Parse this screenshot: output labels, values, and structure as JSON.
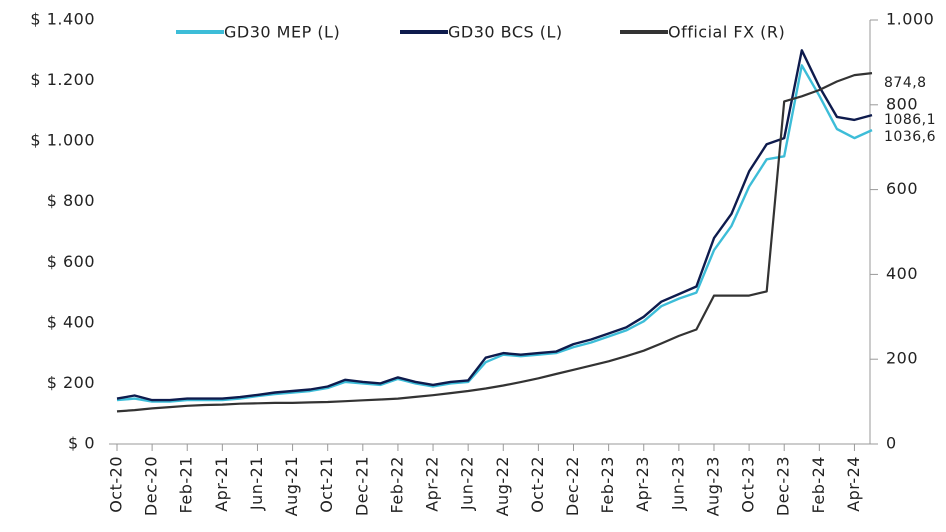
{
  "chart_data": {
    "type": "line",
    "categories": [
      "Oct-20",
      null,
      "Dec-20",
      null,
      "Feb-21",
      null,
      "Apr-21",
      null,
      "Jun-21",
      null,
      "Aug-21",
      null,
      "Oct-21",
      null,
      "Dec-21",
      null,
      "Feb-22",
      null,
      "Apr-22",
      null,
      "Jun-22",
      null,
      "Aug-22",
      null,
      "Oct-22",
      null,
      "Dec-22",
      null,
      "Feb-23",
      null,
      "Apr-23",
      null,
      "Jun-23",
      null,
      "Aug-23",
      null,
      "Oct-23",
      null,
      "Dec-23",
      null,
      "Feb-24",
      null,
      "Apr-24",
      null
    ],
    "series": [
      {
        "name": "GD30 MEP (L)",
        "color": "#3dbdd8",
        "values": [
          145,
          150,
          140,
          140,
          145,
          145,
          145,
          150,
          158,
          165,
          170,
          175,
          185,
          205,
          200,
          195,
          215,
          200,
          190,
          200,
          205,
          270,
          295,
          290,
          295,
          300,
          320,
          335,
          355,
          375,
          405,
          455,
          480,
          500,
          640,
          720,
          850,
          940,
          950,
          1250,
          1150,
          1040,
          1010,
          1036.6
        ],
        "value_labels": [
          null,
          null,
          null,
          null,
          null,
          null,
          null,
          null,
          null,
          null,
          null,
          null,
          null,
          null,
          null,
          null,
          null,
          null,
          null,
          null,
          null,
          null,
          null,
          null,
          null,
          null,
          null,
          null,
          null,
          null,
          null,
          null,
          null,
          null,
          null,
          null,
          null,
          null,
          null,
          null,
          null,
          null,
          null,
          "1036,6"
        ]
      },
      {
        "name": "GD30 BCS (L)",
        "color": "#0e1b4d",
        "values": [
          150,
          160,
          145,
          145,
          150,
          150,
          150,
          155,
          162,
          170,
          175,
          180,
          190,
          212,
          205,
          200,
          220,
          205,
          195,
          205,
          210,
          285,
          300,
          295,
          300,
          305,
          330,
          345,
          365,
          385,
          420,
          470,
          495,
          520,
          680,
          760,
          900,
          990,
          1010,
          1300,
          1180,
          1080,
          1070,
          1086.1
        ],
        "value_labels": [
          null,
          null,
          null,
          null,
          null,
          null,
          null,
          null,
          null,
          null,
          null,
          null,
          null,
          null,
          null,
          null,
          null,
          null,
          null,
          null,
          null,
          null,
          null,
          null,
          null,
          null,
          null,
          null,
          null,
          null,
          null,
          null,
          null,
          null,
          null,
          null,
          null,
          null,
          null,
          null,
          null,
          null,
          null,
          "1086,1"
        ]
      },
      {
        "name": "Official FX (R)",
        "color": "#333333",
        "axis": "y2",
        "values": [
          77,
          80,
          84,
          87,
          90,
          92,
          93,
          95,
          96,
          97,
          97,
          98,
          99,
          101,
          103,
          105,
          107,
          111,
          115,
          120,
          125,
          131,
          138,
          146,
          155,
          165,
          175,
          185,
          195,
          207,
          220,
          237,
          255,
          270,
          350,
          350,
          350,
          360,
          808,
          820,
          835,
          855,
          870,
          874.8
        ],
        "value_labels": [
          null,
          null,
          null,
          null,
          null,
          null,
          null,
          null,
          null,
          null,
          null,
          null,
          null,
          null,
          null,
          null,
          null,
          null,
          null,
          null,
          null,
          null,
          null,
          null,
          null,
          null,
          null,
          null,
          null,
          null,
          null,
          null,
          null,
          null,
          null,
          null,
          null,
          null,
          null,
          null,
          null,
          null,
          null,
          "874,8"
        ]
      }
    ],
    "ylim": [
      0,
      1400
    ],
    "yticks": [
      {
        "value": 0,
        "label": "$ 0"
      },
      {
        "value": 200,
        "label": "$ 200"
      },
      {
        "value": 400,
        "label": "$ 400"
      },
      {
        "value": 600,
        "label": "$ 600"
      },
      {
        "value": 800,
        "label": "$ 800"
      },
      {
        "value": 1000,
        "label": "$ 1.000"
      },
      {
        "value": 1200,
        "label": "$ 1.200"
      },
      {
        "value": 1400,
        "label": "$ 1.400"
      }
    ],
    "y2lim": [
      0,
      1000
    ],
    "y2ticks": [
      0,
      200,
      400,
      600,
      800,
      {
        "value": 1000,
        "label": "1.000"
      }
    ],
    "legend": "top"
  }
}
